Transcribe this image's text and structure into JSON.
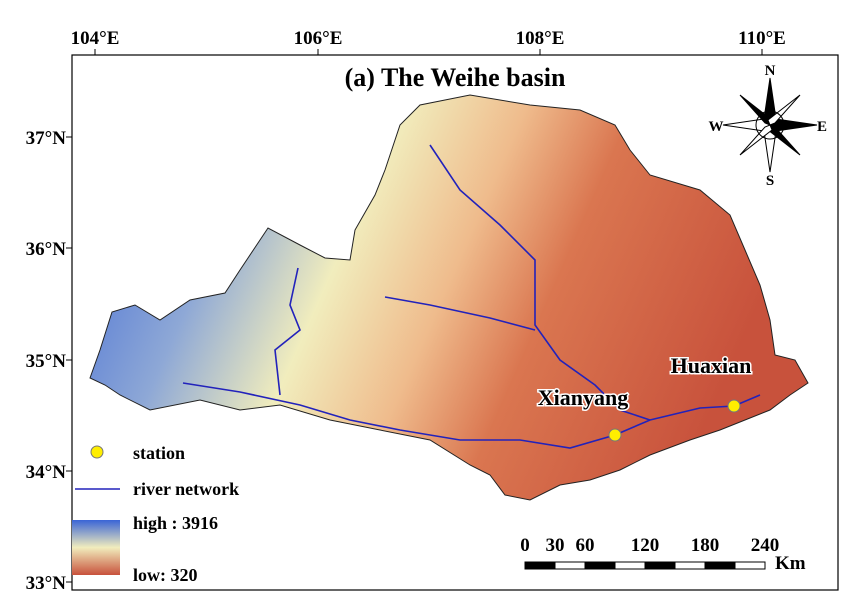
{
  "title": "(a) The Weihe basin",
  "longitude_labels": [
    "104°E",
    "106°E",
    "108°E",
    "110°E"
  ],
  "latitude_labels": [
    "37°N",
    "36°N",
    "35°N",
    "34°N",
    "33°N"
  ],
  "stations": [
    {
      "name": "Xianyang"
    },
    {
      "name": "Huaxian"
    }
  ],
  "compass": {
    "north": "N",
    "south": "S",
    "east": "E",
    "west": "W"
  },
  "legend": {
    "station": "station",
    "river": "river network",
    "elevation_high": "high : 3916",
    "elevation_low": "low: 320"
  },
  "scale_bar": {
    "labels": [
      "0",
      "30",
      "60",
      "120",
      "180",
      "240"
    ],
    "unit": "Km"
  }
}
